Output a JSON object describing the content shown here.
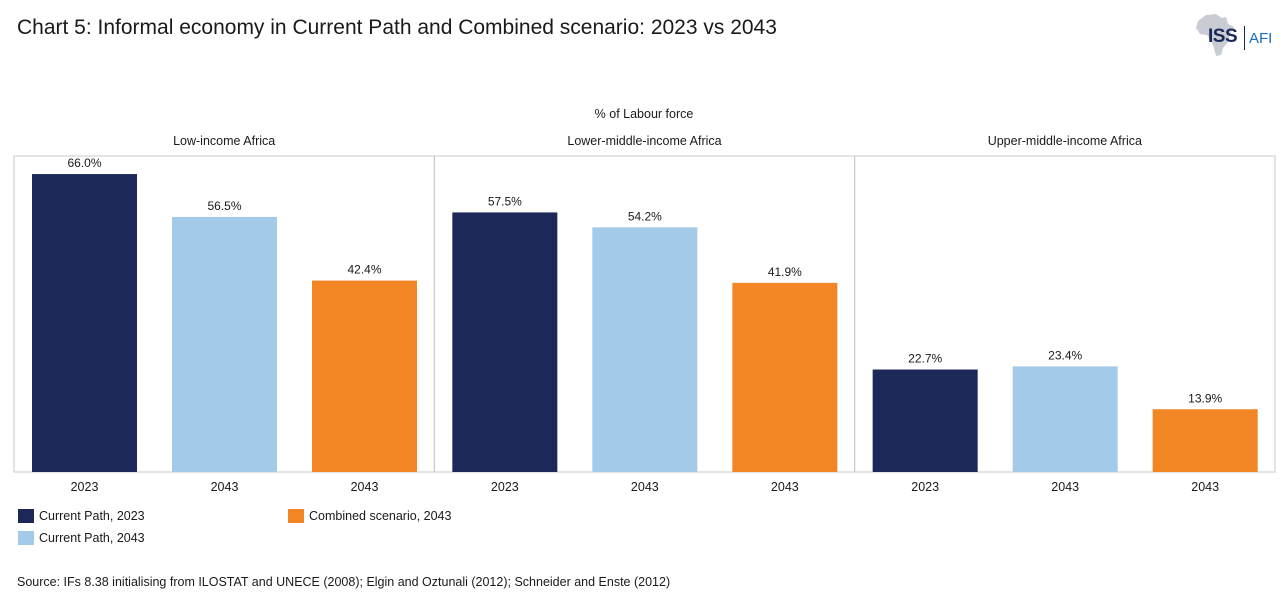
{
  "title": "Chart 5: Informal economy in Current Path and Combined scenario: 2023 vs 2043",
  "logo": {
    "primary": "ISS",
    "secondary": "AFI"
  },
  "chart_data": {
    "type": "bar",
    "unit_label": "% of Labour force",
    "ylim": [
      0,
      70
    ],
    "grid": false,
    "panels": [
      {
        "name": "Low-income Africa",
        "bars": [
          {
            "series": "Current Path, 2023",
            "category": "2023",
            "value": 66.0,
            "label": "66.0%"
          },
          {
            "series": "Current Path, 2043",
            "category": "2043",
            "value": 56.5,
            "label": "56.5%"
          },
          {
            "series": "Combined scenario, 2043",
            "category": "2043",
            "value": 42.4,
            "label": "42.4%"
          }
        ]
      },
      {
        "name": "Lower-middle-income Africa",
        "bars": [
          {
            "series": "Current Path, 2023",
            "category": "2023",
            "value": 57.5,
            "label": "57.5%"
          },
          {
            "series": "Current Path, 2043",
            "category": "2043",
            "value": 54.2,
            "label": "54.2%"
          },
          {
            "series": "Combined scenario, 2043",
            "category": "2043",
            "value": 41.9,
            "label": "41.9%"
          }
        ]
      },
      {
        "name": "Upper-middle-income Africa",
        "bars": [
          {
            "series": "Current Path, 2023",
            "category": "2023",
            "value": 22.7,
            "label": "22.7%"
          },
          {
            "series": "Current Path, 2043",
            "category": "2043",
            "value": 23.4,
            "label": "23.4%"
          },
          {
            "series": "Combined scenario, 2043",
            "category": "2043",
            "value": 13.9,
            "label": "13.9%"
          }
        ]
      }
    ],
    "series": [
      {
        "name": "Current Path, 2023",
        "color": "#1b2858"
      },
      {
        "name": "Current Path, 2043",
        "color": "#a3cbe9"
      },
      {
        "name": "Combined scenario, 2043",
        "color": "#f28524"
      }
    ]
  },
  "source": "Source: IFs 8.38 initialising from ILOSTAT and UNECE (2008); Elgin and Oztunali (2012); Schneider and Enste (2012)"
}
